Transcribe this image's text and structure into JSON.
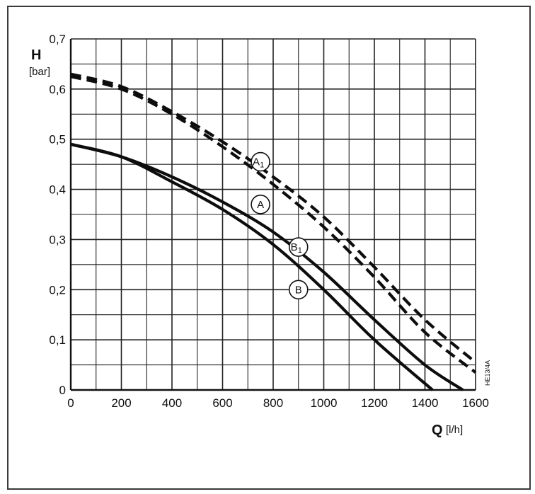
{
  "chart_data": {
    "type": "line",
    "x_axis": {
      "title": "Q",
      "unit": "[l/h]",
      "range": [
        0,
        1600
      ],
      "ticks": [
        0,
        200,
        400,
        600,
        800,
        1000,
        1200,
        1400,
        1600
      ],
      "tick_labels": [
        "0",
        "200",
        "400",
        "600",
        "800",
        "1000",
        "1200",
        "1400",
        "1600"
      ]
    },
    "y_axis": {
      "title": "H",
      "unit": "[bar]",
      "range": [
        0,
        0.7
      ],
      "ticks": [
        0,
        0.1,
        0.2,
        0.3,
        0.4,
        0.5,
        0.6,
        0.7
      ],
      "tick_labels": [
        "0",
        "0,1",
        "0,2",
        "0,3",
        "0,4",
        "0,5",
        "0,6",
        "0,7"
      ]
    },
    "grid": true,
    "code_label": "HE13/4A",
    "series": [
      {
        "name": "A1",
        "style": "dashed",
        "label_at": [
          750,
          0.455
        ],
        "points": [
          [
            0,
            0.63
          ],
          [
            200,
            0.605
          ],
          [
            400,
            0.555
          ],
          [
            600,
            0.495
          ],
          [
            800,
            0.425
          ],
          [
            1000,
            0.345
          ],
          [
            1200,
            0.245
          ],
          [
            1400,
            0.14
          ],
          [
            1600,
            0.055
          ]
        ]
      },
      {
        "name": "A",
        "style": "dashed",
        "label_at": [
          750,
          0.37
        ],
        "points": [
          [
            0,
            0.625
          ],
          [
            200,
            0.6
          ],
          [
            400,
            0.55
          ],
          [
            600,
            0.485
          ],
          [
            800,
            0.41
          ],
          [
            1000,
            0.325
          ],
          [
            1200,
            0.225
          ],
          [
            1400,
            0.115
          ],
          [
            1600,
            0.035
          ]
        ]
      },
      {
        "name": "B1",
        "style": "solid",
        "label_at": [
          900,
          0.285
        ],
        "points": [
          [
            0,
            0.49
          ],
          [
            200,
            0.465
          ],
          [
            400,
            0.425
          ],
          [
            600,
            0.375
          ],
          [
            800,
            0.315
          ],
          [
            1000,
            0.235
          ],
          [
            1200,
            0.14
          ],
          [
            1400,
            0.05
          ],
          [
            1550,
            0.0
          ]
        ]
      },
      {
        "name": "B",
        "style": "solid",
        "label_at": [
          900,
          0.2
        ],
        "points": [
          [
            0,
            0.49
          ],
          [
            200,
            0.465
          ],
          [
            400,
            0.415
          ],
          [
            600,
            0.36
          ],
          [
            800,
            0.29
          ],
          [
            1000,
            0.2
          ],
          [
            1200,
            0.1
          ],
          [
            1430,
            0.0
          ]
        ]
      }
    ]
  }
}
